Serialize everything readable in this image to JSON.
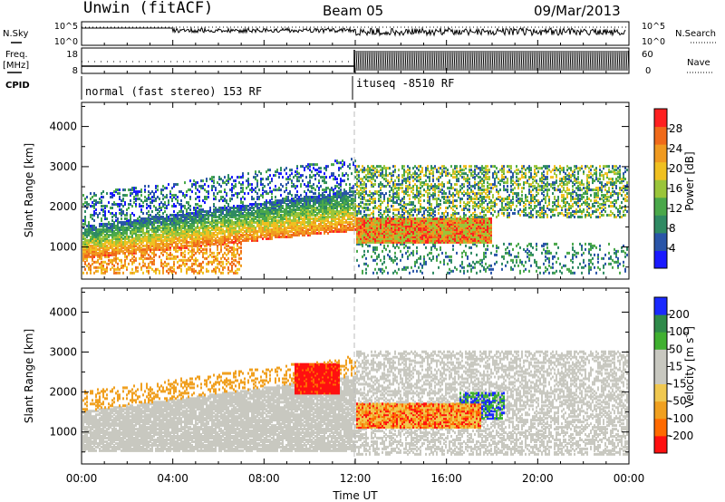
{
  "header": {
    "station": "Unwin (fitACF)",
    "beam": "Beam 05",
    "date": "09/Mar/2013"
  },
  "left_labels": {
    "nsky": "N.Sky",
    "freq_line1": "Freq.",
    "freq_line2": "[MHz]",
    "cpid": "CPID"
  },
  "right_labels": {
    "nsearch": "N.Search",
    "nave": "Nave"
  },
  "colors": {
    "power_scale": [
      "#1a1aff",
      "#2a55a8",
      "#2f8a63",
      "#4aa84a",
      "#9ac53a",
      "#f0c020",
      "#f09a20",
      "#f06a1a",
      "#ff2020"
    ],
    "velocity_scale": [
      "#ff1010",
      "#ff6a00",
      "#f0a020",
      "#f0c850",
      "#c8c8c0",
      "#c8c8c0",
      "#40b030",
      "#2f8a4a",
      "#1a2aff"
    ],
    "gray_scatter": "#c8c8c0"
  },
  "chart_data": [
    {
      "type": "line",
      "panel": "nsky-nsearch",
      "ylabel_left": "N.Sky",
      "ylabel_right": "N.Search",
      "y_ticks_left": [
        "10^5",
        "10^0"
      ],
      "y_ticks_right": [
        "10^5",
        "10^0"
      ]
    },
    {
      "type": "line",
      "panel": "freq-nave",
      "ylabel_left": "Freq. [MHz]",
      "ylabel_right": "Nave",
      "y_ticks_left": [
        "18",
        "8"
      ],
      "y_ticks_right": [
        "60",
        "0"
      ]
    },
    {
      "type": "table",
      "panel": "cpid",
      "label": "CPID",
      "segments": [
        {
          "text": "normal (fast stereo) 153 RF",
          "start_hour": 0,
          "end_hour": 12
        },
        {
          "text": "ituseq -8510 RF",
          "start_hour": 12,
          "end_hour": 24
        }
      ]
    },
    {
      "type": "heatmap",
      "panel": "power",
      "ylabel": "Slant Range [km]",
      "y_ticks": [
        1000,
        2000,
        3000,
        4000
      ],
      "ylim": [
        200,
        4600
      ],
      "xlim": [
        0,
        24
      ],
      "colorbar_label": "Power [dB]",
      "colorbar_ticks": [
        4,
        8,
        12,
        16,
        20,
        24,
        28
      ],
      "colorbar_range": [
        0,
        32
      ]
    },
    {
      "type": "heatmap",
      "panel": "velocity",
      "ylabel": "Slant Range [km]",
      "y_ticks": [
        1000,
        2000,
        3000,
        4000
      ],
      "ylim": [
        200,
        4600
      ],
      "xlim": [
        0,
        24
      ],
      "colorbar_label": "Velocity [m s",
      "colorbar_label_sup": "-1",
      "colorbar_label_close": "]",
      "colorbar_ticks": [
        -200,
        -100,
        -50,
        -15,
        15,
        50,
        100,
        200
      ]
    }
  ],
  "x_axis": {
    "label": "Time UT",
    "ticks": [
      "00:00",
      "04:00",
      "08:00",
      "12:00",
      "16:00",
      "20:00",
      "00:00"
    ]
  }
}
